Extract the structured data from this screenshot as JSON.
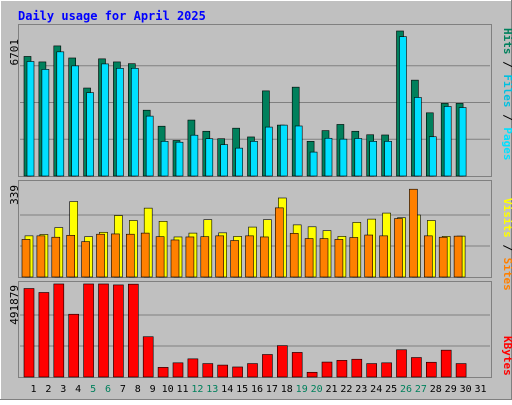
{
  "chart_data": [
    {
      "type": "bar",
      "title": "Daily usage for April 2025",
      "ylabel_parts": [
        "Pages",
        "Files",
        "Hits"
      ],
      "ymax_label": "6701",
      "ylim": [
        0,
        6701
      ],
      "categories": [
        1,
        2,
        3,
        4,
        5,
        6,
        7,
        8,
        9,
        10,
        11,
        12,
        13,
        14,
        15,
        16,
        17,
        18,
        19,
        20,
        21,
        22,
        23,
        24,
        25,
        26,
        27,
        28,
        29,
        30,
        31
      ],
      "series": [
        {
          "name": "Hits",
          "values": [
            5450,
            5200,
            5930,
            5380,
            4010,
            5340,
            5200,
            5120,
            3000,
            2270,
            1620,
            2550,
            2040,
            1700,
            2180,
            1780,
            3880,
            2320,
            4050,
            1580,
            2070,
            2350,
            2040,
            1880,
            1870,
            6610,
            4370,
            2880,
            3310,
            3310,
            0
          ]
        },
        {
          "name": "Files",
          "values": [
            5220,
            4860,
            5660,
            5020,
            3800,
            5110,
            4910,
            4910,
            2730,
            1580,
            1540,
            1860,
            1700,
            1430,
            1270,
            1580,
            2230,
            2320,
            2280,
            1090,
            1720,
            1680,
            1710,
            1580,
            1580,
            6350,
            3580,
            1790,
            3170,
            3120,
            0
          ]
        }
      ]
    },
    {
      "type": "bar",
      "ylabel_parts": [
        "Sites",
        "Visits"
      ],
      "ymax_label": "339",
      "ylim": [
        0,
        339
      ],
      "categories": [
        1,
        2,
        3,
        4,
        5,
        6,
        7,
        8,
        9,
        10,
        11,
        12,
        13,
        14,
        15,
        16,
        17,
        18,
        19,
        20,
        21,
        22,
        23,
        24,
        25,
        26,
        27,
        28,
        29,
        30,
        31
      ],
      "series": [
        {
          "name": "Visits",
          "values": [
            150,
            155,
            180,
            275,
            147,
            163,
            224,
            206,
            251,
            203,
            146,
            160,
            209,
            161,
            148,
            182,
            209,
            288,
            190,
            183,
            169,
            148,
            199,
            211,
            233,
            216,
            226,
            206,
            148,
            149,
            0
          ]
        },
        {
          "name": "Sites",
          "values": [
            137,
            150,
            145,
            152,
            129,
            156,
            157,
            156,
            160,
            147,
            135,
            146,
            147,
            150,
            133,
            150,
            146,
            252,
            159,
            140,
            140,
            137,
            144,
            153,
            150,
            213,
            320,
            150,
            145,
            149,
            0
          ]
        }
      ]
    },
    {
      "type": "bar",
      "ylabel_parts": [
        "KBytes"
      ],
      "ymax_label": "491879",
      "ylim": [
        0,
        491879
      ],
      "categories": [
        1,
        2,
        3,
        4,
        5,
        6,
        7,
        8,
        9,
        10,
        11,
        12,
        13,
        14,
        15,
        16,
        17,
        18,
        19,
        20,
        21,
        22,
        23,
        24,
        25,
        26,
        27,
        28,
        29,
        30,
        31
      ],
      "series": [
        {
          "name": "KBytes",
          "values": [
            468000,
            447000,
            492000,
            332000,
            492000,
            492000,
            487000,
            491000,
            213000,
            51000,
            75000,
            96000,
            71000,
            63000,
            53000,
            71000,
            119000,
            166000,
            130000,
            25000,
            79000,
            88000,
            94000,
            71000,
            75000,
            144000,
            103000,
            78000,
            142000,
            71000,
            0
          ]
        }
      ]
    }
  ],
  "colors": {
    "background": "#c0c0c0",
    "title": "#0000ff",
    "hits": "#00805c",
    "files": "#00e0ff",
    "pages": "#00e0ff",
    "visits": "#ffff00",
    "sites": "#ff8000",
    "kbytes": "#ff0000",
    "weekend_day": "#00805c",
    "weekday": "#000000"
  },
  "weekend_days": [
    5,
    6,
    12,
    13,
    19,
    20,
    26,
    27
  ]
}
